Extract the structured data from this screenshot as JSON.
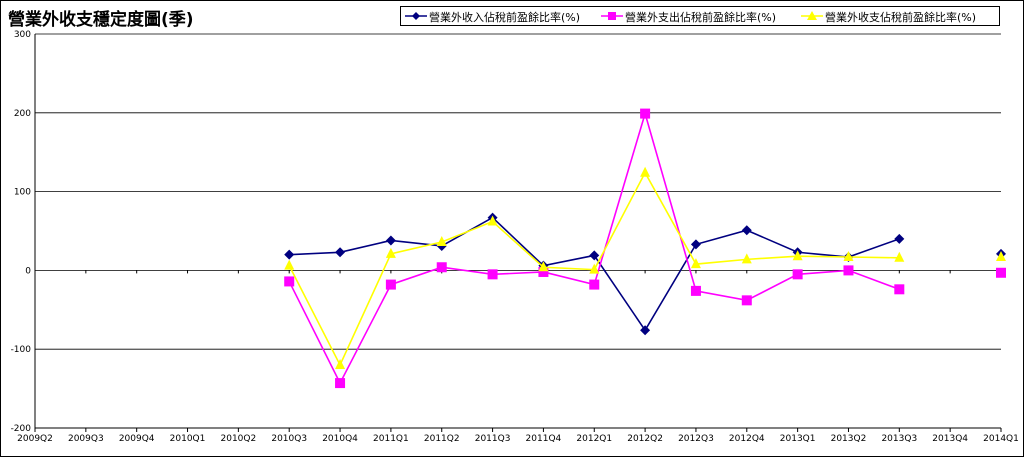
{
  "chart_data": {
    "type": "line",
    "title": "營業外收支穩定度圖(季)",
    "categories": [
      "2009Q2",
      "2009Q3",
      "2009Q4",
      "2010Q1",
      "2010Q2",
      "2010Q3",
      "2010Q4",
      "2011Q1",
      "2011Q2",
      "2011Q3",
      "2011Q4",
      "2012Q1",
      "2012Q2",
      "2012Q3",
      "2012Q4",
      "2013Q1",
      "2013Q2",
      "2013Q3",
      "2013Q4",
      "2014Q1"
    ],
    "ylim": [
      -200,
      300
    ],
    "yticks": [
      "300",
      "200",
      "100",
      "0",
      "-100",
      "-200"
    ],
    "grid": true,
    "legend_position": "top-right",
    "series": [
      {
        "name": "營業外收入佔稅前盈餘比率(%)",
        "color": "#000080",
        "marker": "diamond",
        "values": [
          null,
          null,
          null,
          null,
          null,
          20,
          23,
          38,
          31,
          67,
          6,
          19,
          -76,
          33,
          51,
          23,
          17,
          40,
          null,
          21
        ]
      },
      {
        "name": "營業外支出佔稅前盈餘比率(%)",
        "color": "#ff00ff",
        "marker": "square",
        "values": [
          null,
          null,
          null,
          null,
          null,
          -14,
          -143,
          -18,
          4,
          -5,
          -2,
          -18,
          199,
          -26,
          -38,
          -5,
          0,
          -24,
          null,
          -3
        ]
      },
      {
        "name": "營業外收支佔稅前盈餘比率(%)",
        "color": "#ffff00",
        "marker": "triangle",
        "values": [
          null,
          null,
          null,
          null,
          null,
          6,
          -120,
          21,
          36,
          62,
          4,
          1,
          124,
          8,
          14,
          18,
          17,
          16,
          null,
          17
        ]
      }
    ]
  }
}
